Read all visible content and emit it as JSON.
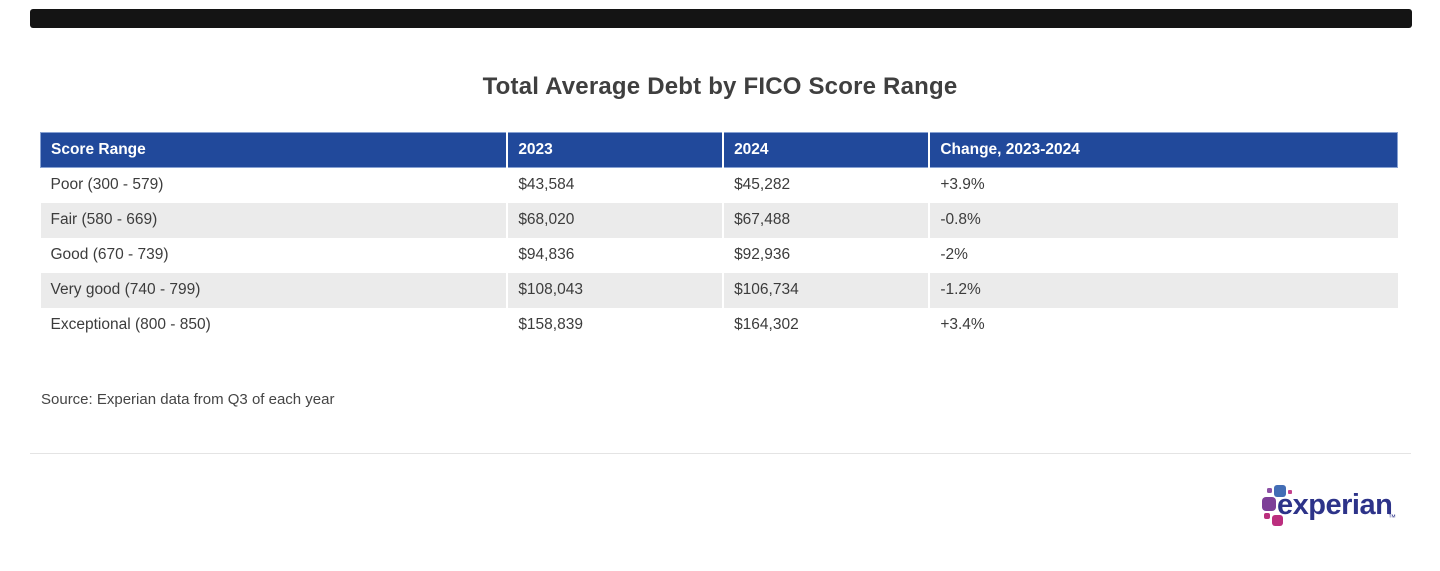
{
  "title": "Total Average Debt by FICO Score Range",
  "source_note": "Source: Experian data from Q3 of each year",
  "chart_data": {
    "type": "table",
    "title": "Total Average Debt by FICO Score Range",
    "columns": [
      "Score Range",
      "2023",
      "2024",
      "Change, 2023-2024"
    ],
    "rows": [
      [
        "Poor (300 - 579)",
        "$43,584",
        "$45,282",
        "+3.9%"
      ],
      [
        "Fair (580 - 669)",
        "$68,020",
        "$67,488",
        "-0.8%"
      ],
      [
        "Good (670 - 739)",
        "$94,836",
        "$92,936",
        "-2%"
      ],
      [
        "Very good (740 - 799)",
        "$108,043",
        "$106,734",
        "-1.2%"
      ],
      [
        "Exceptional (800 - 850)",
        "$158,839",
        "$164,302",
        "+3.4%"
      ]
    ],
    "source": "Source: Experian data from Q3 of each year",
    "values_2023": [
      43584,
      68020,
      94836,
      108043,
      158839
    ],
    "values_2024": [
      45282,
      67488,
      92936,
      106734,
      164302
    ],
    "change_pct": [
      3.9,
      -0.8,
      -2,
      -1.2,
      3.4
    ]
  },
  "logo": {
    "wordmark": "experian",
    "trademark_symbol": "™"
  },
  "icons": {
    "logo_mark": "experian-blocks-logo-mark"
  },
  "colors": {
    "top_bar": "#141414",
    "title_text": "#3F3F3F",
    "header_bg": "#21499B",
    "header_text": "#FFFFFF",
    "row_alt_bg": "#EBEBEB",
    "body_text": "#3C3C3C",
    "divider": "#E4E4E4",
    "logo_wordmark": "#2D3389",
    "logo_purple": "#7D3F98",
    "logo_blue": "#426DB5",
    "logo_magenta": "#BA2F7D"
  }
}
